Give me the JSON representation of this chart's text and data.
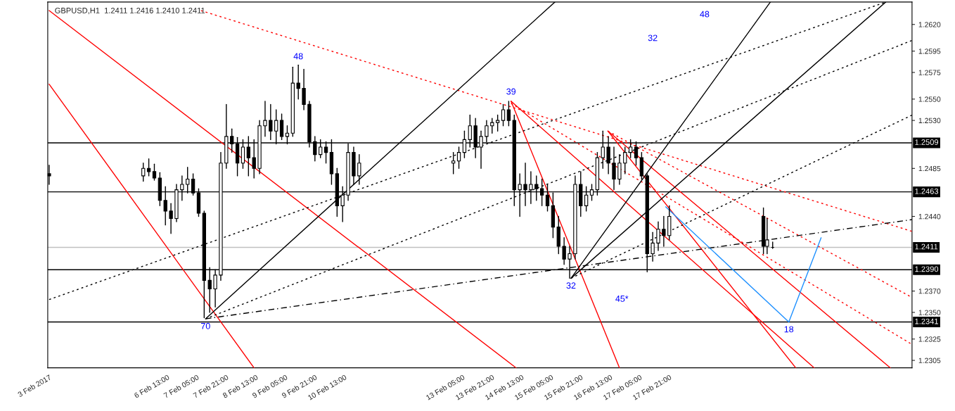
{
  "chart_data": {
    "type": "candlestick",
    "title": "GBPUSD,H1  1.2411 1.2416 1.2410 1.2411",
    "color": "#000000",
    "x": [
      "2017-02-03T21:00",
      "2017-02-06T00:00",
      "2017-02-06T03:00",
      "2017-02-06T06:00",
      "2017-02-06T09:00",
      "2017-02-06T12:00",
      "2017-02-06T15:00",
      "2017-02-06T18:00",
      "2017-02-06T21:00",
      "2017-02-07T00:00",
      "2017-02-07T03:00",
      "2017-02-07T06:00",
      "2017-02-07T09:00",
      "2017-02-07T12:00",
      "2017-02-07T15:00",
      "2017-02-07T18:00",
      "2017-02-07T21:00",
      "2017-02-08T00:00",
      "2017-02-08T03:00",
      "2017-02-08T06:00",
      "2017-02-08T09:00",
      "2017-02-08T12:00",
      "2017-02-08T15:00",
      "2017-02-08T18:00",
      "2017-02-08T21:00",
      "2017-02-09T00:00",
      "2017-02-09T03:00",
      "2017-02-09T06:00",
      "2017-02-09T09:00",
      "2017-02-09T12:00",
      "2017-02-09T15:00",
      "2017-02-09T18:00",
      "2017-02-09T21:00",
      "2017-02-10T00:00",
      "2017-02-10T03:00",
      "2017-02-10T06:00",
      "2017-02-10T09:00",
      "2017-02-10T12:00",
      "2017-02-10T15:00",
      "2017-02-10T18:00",
      "2017-02-10T21:00",
      "2017-02-13T00:00",
      "2017-02-13T03:00",
      "2017-02-13T06:00",
      "2017-02-13T09:00",
      "2017-02-13T12:00",
      "2017-02-13T15:00",
      "2017-02-13T18:00",
      "2017-02-13T21:00",
      "2017-02-14T00:00",
      "2017-02-14T03:00",
      "2017-02-14T06:00",
      "2017-02-14T09:00",
      "2017-02-14T12:00",
      "2017-02-14T15:00",
      "2017-02-14T18:00",
      "2017-02-14T21:00",
      "2017-02-15T00:00",
      "2017-02-15T03:00",
      "2017-02-15T06:00",
      "2017-02-15T09:00",
      "2017-02-15T12:00",
      "2017-02-15T15:00",
      "2017-02-15T18:00",
      "2017-02-15T21:00",
      "2017-02-16T00:00",
      "2017-02-16T03:00",
      "2017-02-16T06:00",
      "2017-02-16T09:00",
      "2017-02-16T12:00",
      "2017-02-16T15:00",
      "2017-02-16T18:00",
      "2017-02-16T21:00",
      "2017-02-17T00:00",
      "2017-02-17T03:00",
      "2017-02-17T06:00",
      "2017-02-17T09:00",
      "2017-02-17T12:00",
      "2017-02-17T15:00",
      "2017-02-17T18:00",
      "2017-02-17T21:00",
      "2017-02-20T00:00",
      "2017-02-20T02:00",
      "2017-02-20T05:00"
    ],
    "ohlc": [
      [
        1.248,
        1.2488,
        1.247,
        1.2478
      ],
      [
        1.2478,
        1.249,
        1.2473,
        1.2485
      ],
      [
        1.2485,
        1.2494,
        1.2478,
        1.2482
      ],
      [
        1.2482,
        1.2489,
        1.2474,
        1.2476
      ],
      [
        1.2476,
        1.2481,
        1.245,
        1.2455
      ],
      [
        1.2455,
        1.2468,
        1.2432,
        1.2445
      ],
      [
        1.2445,
        1.2452,
        1.2424,
        1.2438
      ],
      [
        1.2438,
        1.247,
        1.2435,
        1.2465
      ],
      [
        1.2465,
        1.2478,
        1.2455,
        1.247
      ],
      [
        1.247,
        1.2486,
        1.2462,
        1.2475
      ],
      [
        1.2475,
        1.248,
        1.246,
        1.2462
      ],
      [
        1.2462,
        1.2466,
        1.244,
        1.2443
      ],
      [
        1.2443,
        1.2445,
        1.2345,
        1.238
      ],
      [
        1.238,
        1.2392,
        1.235,
        1.2372
      ],
      [
        1.2372,
        1.239,
        1.2355,
        1.2385
      ],
      [
        1.2385,
        1.25,
        1.238,
        1.249
      ],
      [
        1.249,
        1.2545,
        1.2485,
        1.2515
      ],
      [
        1.2515,
        1.2522,
        1.25,
        1.2508
      ],
      [
        1.2508,
        1.2514,
        1.2478,
        1.249
      ],
      [
        1.249,
        1.2512,
        1.2485,
        1.2505
      ],
      [
        1.2505,
        1.2515,
        1.2478,
        1.2495
      ],
      [
        1.2495,
        1.2512,
        1.2476,
        1.2485
      ],
      [
        1.2485,
        1.253,
        1.248,
        1.2525
      ],
      [
        1.2525,
        1.2548,
        1.2515,
        1.253
      ],
      [
        1.253,
        1.2545,
        1.2512,
        1.252
      ],
      [
        1.252,
        1.254,
        1.2508,
        1.253
      ],
      [
        1.253,
        1.2536,
        1.2512,
        1.2515
      ],
      [
        1.2515,
        1.2525,
        1.2508,
        1.2518
      ],
      [
        1.2518,
        1.258,
        1.2515,
        1.2565
      ],
      [
        1.2565,
        1.2582,
        1.255,
        1.256
      ],
      [
        1.256,
        1.2578,
        1.254,
        1.2545
      ],
      [
        1.2545,
        1.2548,
        1.2505,
        1.251
      ],
      [
        1.251,
        1.2515,
        1.2492,
        1.2498
      ],
      [
        1.2498,
        1.2512,
        1.2495,
        1.2505
      ],
      [
        1.2505,
        1.251,
        1.249,
        1.25
      ],
      [
        1.25,
        1.2512,
        1.247,
        1.248
      ],
      [
        1.248,
        1.2485,
        1.244,
        1.245
      ],
      [
        1.245,
        1.2468,
        1.2435,
        1.246
      ],
      [
        1.246,
        1.2508,
        1.2455,
        1.25
      ],
      [
        1.25,
        1.2505,
        1.247,
        1.2478
      ],
      [
        1.2478,
        1.2498,
        1.247,
        1.249
      ],
      [
        1.249,
        1.25,
        1.248,
        1.2492
      ],
      [
        1.2492,
        1.2505,
        1.2485,
        1.25
      ],
      [
        1.25,
        1.252,
        1.2495,
        1.2512
      ],
      [
        1.2512,
        1.2535,
        1.2505,
        1.2525
      ],
      [
        1.2525,
        1.2532,
        1.2495,
        1.2505
      ],
      [
        1.2505,
        1.252,
        1.2485,
        1.2515
      ],
      [
        1.2515,
        1.253,
        1.251,
        1.2525
      ],
      [
        1.2525,
        1.2532,
        1.2518,
        1.2528
      ],
      [
        1.2528,
        1.2535,
        1.252,
        1.253
      ],
      [
        1.253,
        1.2545,
        1.2525,
        1.254
      ],
      [
        1.254,
        1.2548,
        1.2525,
        1.253
      ],
      [
        1.253,
        1.2535,
        1.245,
        1.2465
      ],
      [
        1.2465,
        1.248,
        1.244,
        1.247
      ],
      [
        1.247,
        1.249,
        1.245,
        1.2465
      ],
      [
        1.2465,
        1.2482,
        1.2452,
        1.247
      ],
      [
        1.247,
        1.2478,
        1.2455,
        1.2466
      ],
      [
        1.2466,
        1.2475,
        1.245,
        1.246
      ],
      [
        1.246,
        1.247,
        1.2445,
        1.245
      ],
      [
        1.245,
        1.2462,
        1.242,
        1.243
      ],
      [
        1.243,
        1.244,
        1.2405,
        1.2412
      ],
      [
        1.2412,
        1.242,
        1.2395,
        1.24
      ],
      [
        1.24,
        1.2412,
        1.2382,
        1.2405
      ],
      [
        1.2405,
        1.2478,
        1.24,
        1.247
      ],
      [
        1.247,
        1.2482,
        1.244,
        1.245
      ],
      [
        1.245,
        1.2468,
        1.2445,
        1.246
      ],
      [
        1.246,
        1.247,
        1.2455,
        1.2465
      ],
      [
        1.2465,
        1.25,
        1.246,
        1.2495
      ],
      [
        1.2495,
        1.252,
        1.2485,
        1.2505
      ],
      [
        1.2505,
        1.2515,
        1.248,
        1.249
      ],
      [
        1.249,
        1.2505,
        1.2465,
        1.2475
      ],
      [
        1.2475,
        1.2498,
        1.247,
        1.249
      ],
      [
        1.249,
        1.2505,
        1.248,
        1.25
      ],
      [
        1.25,
        1.2512,
        1.2495,
        1.2505
      ],
      [
        1.2505,
        1.251,
        1.2488,
        1.2495
      ],
      [
        1.2495,
        1.25,
        1.2475,
        1.2478
      ],
      [
        1.2478,
        1.248,
        1.2388,
        1.2405
      ],
      [
        1.2405,
        1.2425,
        1.2398,
        1.2415
      ],
      [
        1.2415,
        1.2435,
        1.2408,
        1.2428
      ],
      [
        1.2428,
        1.244,
        1.2412,
        1.2422
      ],
      [
        1.2422,
        1.245,
        1.2418,
        1.244
      ],
      [
        1.244,
        1.2448,
        1.2405,
        1.2412
      ],
      [
        1.2412,
        1.2438,
        1.2405,
        1.2418
      ],
      [
        1.2411,
        1.2416,
        1.241,
        1.2411
      ]
    ],
    "series": [
      {
        "type": "line",
        "color": "#ff0000",
        "line_style": "solid",
        "x": [
          "2017-02-03T21:00",
          "2017-02-08T12:00"
        ],
        "values": [
          1.2564,
          1.2298
        ]
      },
      {
        "type": "line",
        "color": "#ff0000",
        "line_style": "solid",
        "x": [
          "2017-02-03T21:00",
          "2017-02-14T10:00"
        ],
        "values": [
          1.2633,
          1.2298
        ]
      },
      {
        "type": "line",
        "color": "#ff0000",
        "line_style": "dotted",
        "x": [
          "2017-02-07T07:15",
          "2017-02-23T08:30"
        ],
        "values": [
          1.2633,
          1.2426
        ]
      },
      {
        "type": "line",
        "color": "#ff0000",
        "line_style": "dotted",
        "x": [
          "2017-02-14T07:15",
          "2017-02-23T08:30"
        ],
        "values": [
          1.2546,
          1.232
        ]
      },
      {
        "type": "line",
        "color": "#ff0000",
        "line_style": "dotted",
        "x": [
          "2017-02-16T11:45",
          "2017-02-23T08:30"
        ],
        "values": [
          1.252,
          1.2364
        ]
      },
      {
        "type": "line",
        "color": "#ff0000",
        "line_style": "solid",
        "x": [
          "2017-02-14T07:15",
          "2017-02-16T18:00"
        ],
        "values": [
          1.2548,
          1.2298
        ]
      },
      {
        "type": "line",
        "color": "#ff0000",
        "line_style": "solid",
        "x": [
          "2017-02-14T07:15",
          "2017-02-21T03:30"
        ],
        "values": [
          1.2548,
          1.2298
        ]
      },
      {
        "type": "line",
        "color": "#ff0000",
        "line_style": "solid",
        "x": [
          "2017-02-16T11:45",
          "2017-02-20T17:30"
        ],
        "values": [
          1.252,
          1.2298
        ]
      },
      {
        "type": "line",
        "color": "#ff0000",
        "line_style": "solid",
        "x": [
          "2017-02-16T11:45",
          "2017-02-22T20:45"
        ],
        "values": [
          1.252,
          1.2298
        ]
      },
      {
        "type": "line",
        "color": "#000000",
        "line_style": "solid",
        "x": [
          "2017-02-07T09:45",
          "2017-02-15T07:00"
        ],
        "values": [
          1.2344,
          1.2641
        ]
      },
      {
        "type": "line",
        "color": "#000000",
        "line_style": "dotted",
        "x": [
          "2017-02-03T21:00",
          "2017-02-22T18:15"
        ],
        "values": [
          1.2362,
          1.2641
        ]
      },
      {
        "type": "line",
        "color": "#000000",
        "line_style": "dotted",
        "x": [
          "2017-02-07T09:45",
          "2017-02-23T08:30"
        ],
        "values": [
          1.2344,
          1.2605
        ]
      },
      {
        "type": "line",
        "color": "#000000",
        "line_style": "dotted",
        "x": [
          "2017-02-15T15:45",
          "2017-02-23T08:30"
        ],
        "values": [
          1.2382,
          1.2535
        ]
      },
      {
        "type": "line",
        "color": "#000000",
        "line_style": "dashed",
        "x": [
          "2017-02-07T09:45",
          "2017-02-23T08:30"
        ],
        "values": [
          1.2344,
          1.2437
        ]
      },
      {
        "type": "line",
        "color": "#000000",
        "line_style": "solid",
        "x": [
          "2017-02-15T15:45",
          "2017-02-20T03:45"
        ],
        "values": [
          1.2382,
          1.2641
        ]
      },
      {
        "type": "line",
        "color": "#000000",
        "line_style": "solid",
        "x": [
          "2017-02-15T15:45",
          "2017-02-22T18:15"
        ],
        "values": [
          1.2382,
          1.2641
        ]
      },
      {
        "type": "line",
        "color": "#1e90ff",
        "line_style": "solid",
        "x": [
          "2017-02-17T19:00",
          "2017-02-20T13:45",
          "2017-02-21T07:15"
        ],
        "values": [
          1.2449,
          1.2341,
          1.242
        ]
      }
    ],
    "ref_lines": [
      {
        "axis": "y",
        "value": 1.2509,
        "label": "1.2509",
        "color": "#000000"
      },
      {
        "axis": "y",
        "value": 1.2463,
        "label": "1.2463",
        "color": "#000000"
      },
      {
        "axis": "y",
        "value": 1.2411,
        "label": "1.2411",
        "color": "#c0c0c0"
      },
      {
        "axis": "y",
        "value": 1.239,
        "label": "1.2390",
        "color": "#000000"
      },
      {
        "axis": "y",
        "value": 1.2341,
        "label": "1.2341",
        "color": "#000000"
      }
    ],
    "annotations": [
      {
        "text": "48",
        "x": "2017-02-09T12:00",
        "y": 1.2582
      },
      {
        "text": "39",
        "x": "2017-02-14T07:15",
        "y": 1.2548
      },
      {
        "text": "32",
        "x": "2017-02-15T15:45",
        "y": 1.2382
      },
      {
        "text": "70",
        "x": "2017-02-07T09:45",
        "y": 1.2344
      },
      {
        "text": "45*",
        "x": "2017-02-16T05:00",
        "y": 1.2353
      },
      {
        "text": "18",
        "x": "2017-02-20T13:45",
        "y": 1.2341
      },
      "32",
      "48"
    ],
    "xlim": [
      "2017-02-03T20:15",
      "2017-02-23T08:30"
    ],
    "ylim": [
      1.2298,
      1.2641
    ],
    "xticks": [
      {
        "value": "2017-02-03T21:00",
        "label": "3 Feb 2017"
      },
      {
        "value": "2017-02-06T13:00",
        "label": "6 Feb 13:00"
      },
      {
        "value": "2017-02-07T05:00",
        "label": "7 Feb 05:00"
      },
      {
        "value": "2017-02-07T21:00",
        "label": "7 Feb 21:00"
      },
      {
        "value": "2017-02-08T13:00",
        "label": "8 Feb 13:00"
      },
      {
        "value": "2017-02-09T05:00",
        "label": "9 Feb 05:00"
      },
      {
        "value": "2017-02-09T21:00",
        "label": "9 Feb 21:00"
      },
      {
        "value": "2017-02-10T13:00",
        "label": "10 Feb 13:00"
      },
      {
        "value": "2017-02-13T05:00",
        "label": "13 Feb 05:00"
      },
      {
        "value": "2017-02-13T21:00",
        "label": "13 Feb 21:00"
      },
      {
        "value": "2017-02-14T13:00",
        "label": "14 Feb 13:00"
      },
      {
        "value": "2017-02-15T05:00",
        "label": "15 Feb 05:00"
      },
      {
        "value": "2017-02-15T21:00",
        "label": "15 Feb 21:00"
      },
      {
        "value": "2017-02-16T13:00",
        "label": "16 Feb 13:00"
      },
      {
        "value": "2017-02-17T05:00",
        "label": "17 Feb 05:00"
      },
      {
        "value": "2017-02-17T21:00",
        "label": "17 Feb 21:00"
      }
    ],
    "yticks": [
      {
        "value": 1.2305,
        "label": "1.2305"
      },
      {
        "value": 1.2325,
        "label": "1.2325"
      },
      {
        "value": 1.235,
        "label": "1.2350"
      },
      {
        "value": 1.237,
        "label": "1.2370"
      },
      {
        "value": 1.244,
        "label": "1.2440"
      },
      {
        "value": 1.2485,
        "label": "1.2485"
      },
      {
        "value": 1.253,
        "label": "1.2530"
      },
      {
        "value": 1.255,
        "label": "1.2550"
      },
      {
        "value": 1.2575,
        "label": "1.2575"
      },
      {
        "value": 1.2595,
        "label": "1.2595"
      },
      {
        "value": 1.262,
        "label": "1.2620"
      }
    ],
    "grid": false
  }
}
